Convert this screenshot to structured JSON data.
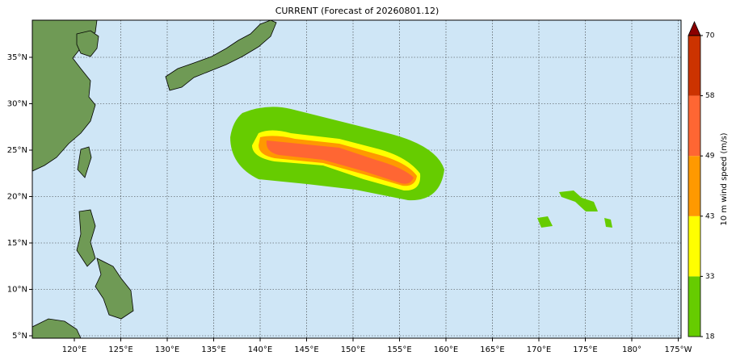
{
  "map": {
    "title": "CURRENT (Forecast of 20260801.12)",
    "lon_ticks": [
      {
        "value": 120,
        "label": "120°E"
      },
      {
        "value": 125,
        "label": "125°E"
      },
      {
        "value": 130,
        "label": "130°E"
      },
      {
        "value": 135,
        "label": "135°E"
      },
      {
        "value": 140,
        "label": "140°E"
      },
      {
        "value": 145,
        "label": "145°E"
      },
      {
        "value": 150,
        "label": "150°E"
      },
      {
        "value": 155,
        "label": "155°E"
      },
      {
        "value": 160,
        "label": "160°E"
      },
      {
        "value": 165,
        "label": "165°E"
      },
      {
        "value": 170,
        "label": "170°E"
      },
      {
        "value": 175,
        "label": "175°E"
      },
      {
        "value": 180,
        "label": "180°"
      },
      {
        "value": 185,
        "label": "175°W"
      }
    ],
    "lat_ticks": [
      {
        "value": 5,
        "label": "5°N"
      },
      {
        "value": 10,
        "label": "10°N"
      },
      {
        "value": 15,
        "label": "15°N"
      },
      {
        "value": 20,
        "label": "20°N"
      },
      {
        "value": 25,
        "label": "25°N"
      },
      {
        "value": 30,
        "label": "30°N"
      },
      {
        "value": 35,
        "label": "35°N"
      }
    ],
    "grid": true
  },
  "colorbar": {
    "label": "10 m wind speed (m/s)",
    "ticks": [
      18,
      33,
      43,
      49,
      58,
      70
    ],
    "colors": [
      "#66cc00",
      "#ffff00",
      "#ff9900",
      "#ff6633",
      "#cc3300"
    ],
    "extend_color": "#8b0000"
  }
}
